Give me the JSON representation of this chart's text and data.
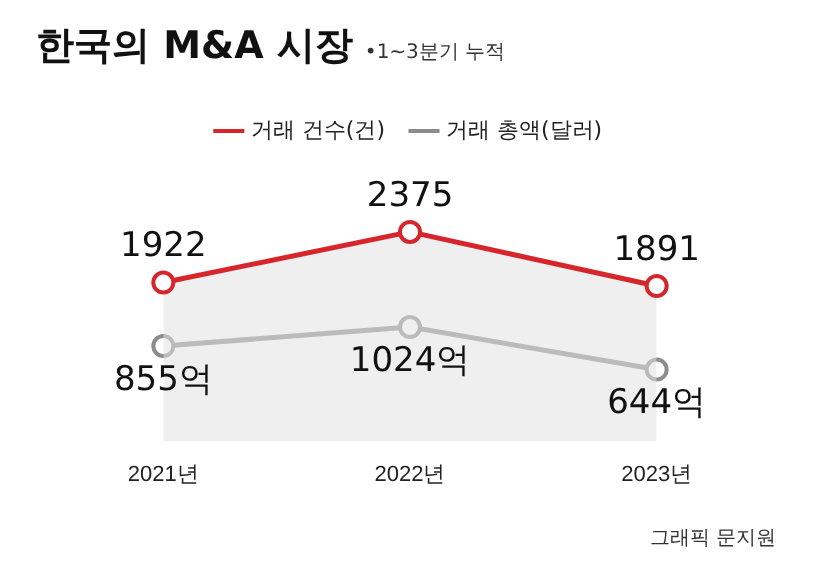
{
  "chart_data": {
    "type": "line",
    "title": "한국의 M&A 시장",
    "subtitle": "•1~3분기 누적",
    "categories": [
      "2021년",
      "2022년",
      "2023년"
    ],
    "series": [
      {
        "name": "거래 건수(건)",
        "color": "#d7262b",
        "type": "area",
        "values": [
          1922,
          2375,
          1891
        ],
        "value_labels": [
          "1922",
          "2375",
          "1891"
        ]
      },
      {
        "name": "거래 총액(달러)",
        "color": "#8c8c8c",
        "axis": "y2",
        "values": [
          855,
          1024,
          644
        ],
        "value_labels": [
          "855억",
          "1024억",
          "644억"
        ]
      }
    ],
    "tick_labels": "x",
    "legend": "top",
    "marker": "circle",
    "annotations": [
      "그래픽 문지원"
    ]
  }
}
